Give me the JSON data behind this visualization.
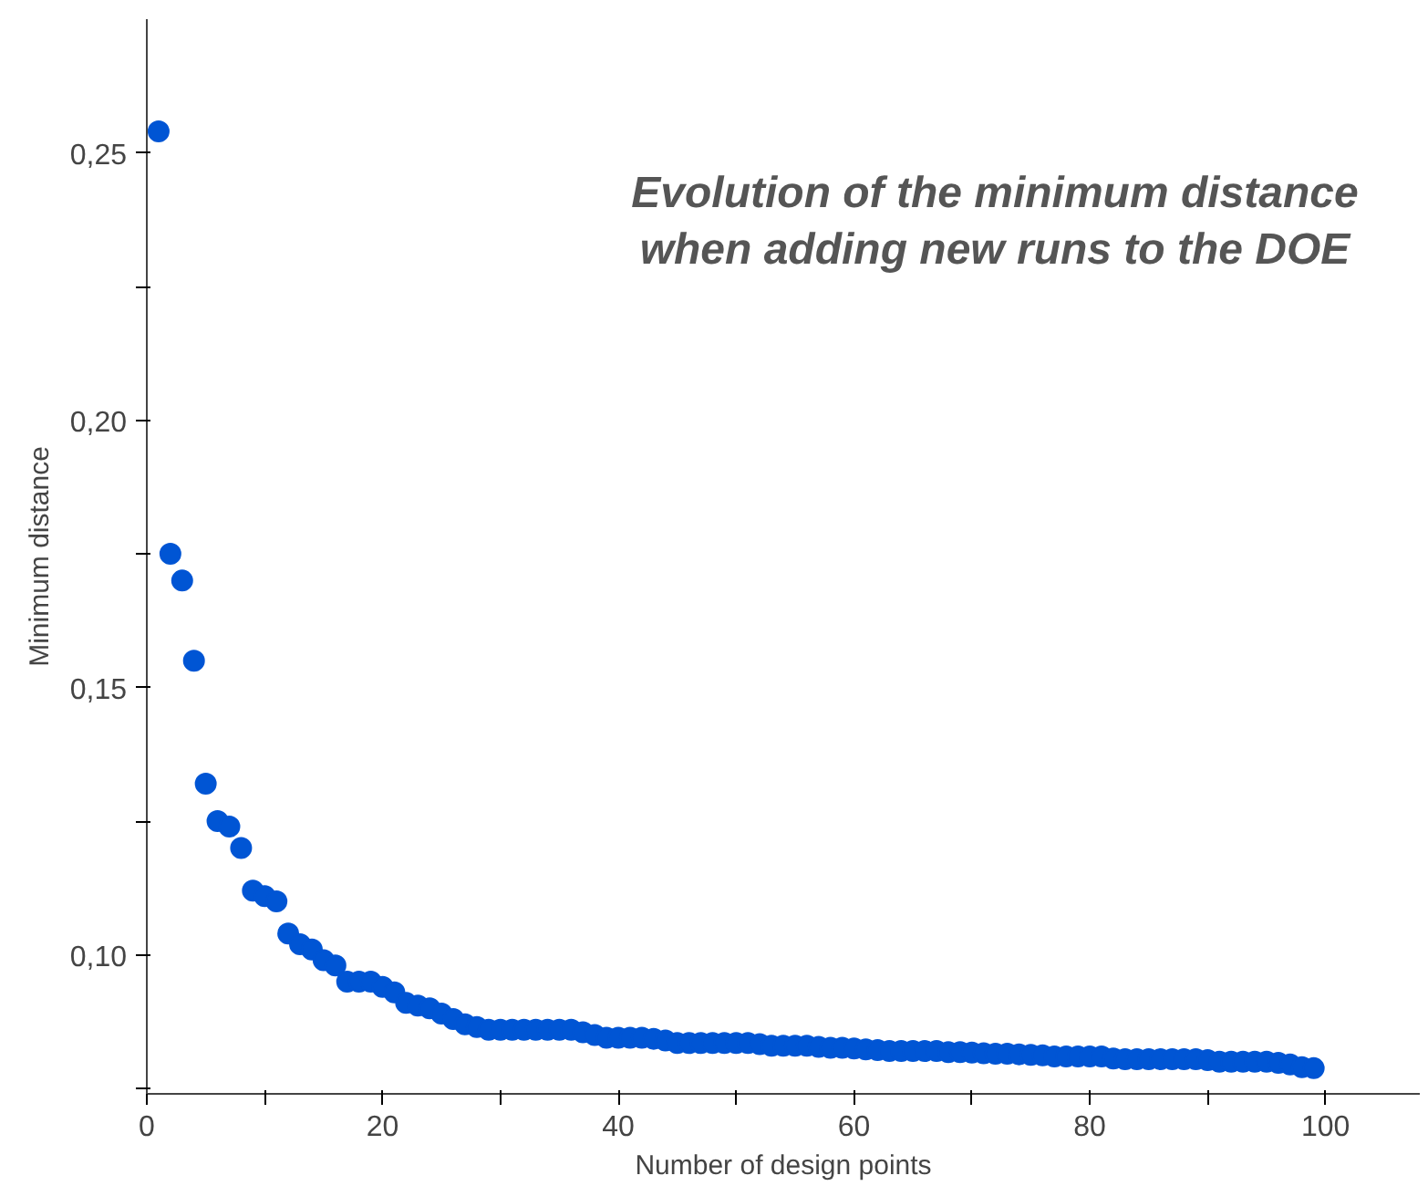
{
  "chart_data": {
    "type": "scatter",
    "title": "Evolution of the minimum distance when adding new runs to the DOE",
    "xlabel": "Number of design points",
    "ylabel": "Minimum distance",
    "x": [
      1,
      2,
      3,
      4,
      5,
      6,
      7,
      8,
      9,
      10,
      11,
      12,
      13,
      14,
      15,
      16,
      17,
      18,
      19,
      20,
      21,
      22,
      23,
      24,
      25,
      26,
      27,
      28,
      29,
      30,
      31,
      32,
      33,
      34,
      35,
      36,
      37,
      38,
      39,
      40,
      41,
      42,
      43,
      44,
      45,
      46,
      47,
      48,
      49,
      50,
      51,
      52,
      53,
      54,
      55,
      56,
      57,
      58,
      59,
      60,
      61,
      62,
      63,
      64,
      65,
      66,
      67,
      68,
      69,
      70,
      71,
      72,
      73,
      74,
      75,
      76,
      77,
      78,
      79,
      80,
      81,
      82,
      83,
      84,
      85,
      86,
      87,
      88,
      89,
      90,
      91,
      92,
      93,
      94,
      95,
      96,
      97,
      98,
      99
    ],
    "series": [
      {
        "color": "#0055d4",
        "values": [
          0.254,
          0.175,
          0.17,
          0.155,
          0.132,
          0.125,
          0.124,
          0.12,
          0.112,
          0.111,
          0.11,
          0.104,
          0.102,
          0.101,
          0.099,
          0.098,
          0.095,
          0.095,
          0.095,
          0.094,
          0.093,
          0.091,
          0.0905,
          0.09,
          0.089,
          0.088,
          0.087,
          0.0865,
          0.086,
          0.086,
          0.086,
          0.086,
          0.086,
          0.086,
          0.086,
          0.086,
          0.0855,
          0.085,
          0.0845,
          0.0845,
          0.0845,
          0.0845,
          0.0843,
          0.084,
          0.0835,
          0.0835,
          0.0835,
          0.0835,
          0.0835,
          0.0835,
          0.0835,
          0.0833,
          0.083,
          0.083,
          0.083,
          0.083,
          0.0828,
          0.0826,
          0.0826,
          0.0825,
          0.0823,
          0.0822,
          0.082,
          0.082,
          0.082,
          0.082,
          0.082,
          0.0818,
          0.0818,
          0.0817,
          0.0816,
          0.0815,
          0.0815,
          0.0814,
          0.0813,
          0.0812,
          0.081,
          0.081,
          0.081,
          0.081,
          0.081,
          0.0806,
          0.0805,
          0.0805,
          0.0805,
          0.0805,
          0.0805,
          0.0805,
          0.0805,
          0.0803,
          0.08,
          0.08,
          0.08,
          0.08,
          0.08,
          0.0798,
          0.0795,
          0.079,
          0.0788
        ]
      }
    ],
    "marker": "circle",
    "xlim": [
      0,
      108
    ],
    "ylim": [
      0.074,
      0.275
    ],
    "xticks": [
      0,
      {
        "value": 10,
        "label": null
      },
      20,
      {
        "value": 30,
        "label": null
      },
      40,
      {
        "value": 50,
        "label": null
      },
      60,
      {
        "value": 70,
        "label": null
      },
      80,
      {
        "value": 90,
        "label": null
      },
      100
    ],
    "yticks": [
      {
        "value": 0.075,
        "label": null
      },
      {
        "value": 0.1,
        "label": "0,10"
      },
      {
        "value": 0.125,
        "label": null
      },
      {
        "value": 0.15,
        "label": "0,15"
      },
      {
        "value": 0.175,
        "label": null
      },
      {
        "value": 0.2,
        "label": "0,20"
      },
      {
        "value": 0.225,
        "label": null
      },
      {
        "value": 0.25,
        "label": "0,25"
      }
    ],
    "grid": false
  }
}
